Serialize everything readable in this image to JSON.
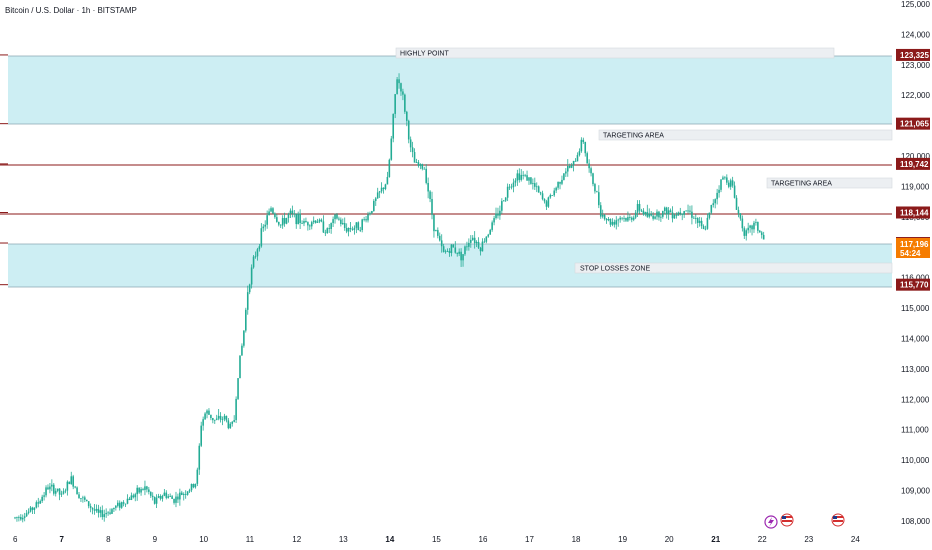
{
  "header": {
    "title": "Bitcoin / U.S. Dollar · 1h · BITSTAMP"
  },
  "colors": {
    "candle": "#22ab94",
    "zone_fill": "#cdeef3",
    "zone_line": "#8aa6b3",
    "level_line": "#8b1a1a",
    "level_tag": "#8b1a1a",
    "price_tag": "#f57c00",
    "label_box": "#eceff2",
    "grid_text": "#131722"
  },
  "chart_data": {
    "type": "candlestick",
    "symbol": "Bitcoin / U.S. Dollar",
    "interval": "1h",
    "exchange": "BITSTAMP",
    "ylim": [
      107900,
      125000
    ],
    "y_ticks": [
      "125,000",
      "124,000",
      "123,000",
      "122,000",
      "121,000",
      "120,000",
      "119,000",
      "118,000",
      "117,000",
      "116,000",
      "115,000",
      "114,000",
      "113,000",
      "112,000",
      "111,000",
      "110,000",
      "109,000",
      "108,000"
    ],
    "x_ticks": [
      "6",
      "7",
      "8",
      "9",
      "10",
      "11",
      "12",
      "13",
      "14",
      "15",
      "16",
      "17",
      "18",
      "19",
      "20",
      "21",
      "22",
      "23",
      "24"
    ],
    "bold_x_ticks": [
      "7",
      "14",
      "21"
    ],
    "price_path": [
      [
        6.0,
        108100
      ],
      [
        6.3,
        108300
      ],
      [
        6.5,
        108600
      ],
      [
        6.7,
        109100
      ],
      [
        6.9,
        109000
      ],
      [
        7.0,
        108800
      ],
      [
        7.2,
        109400
      ],
      [
        7.4,
        108800
      ],
      [
        7.6,
        108500
      ],
      [
        7.8,
        108200
      ],
      [
        8.0,
        108300
      ],
      [
        8.2,
        108500
      ],
      [
        8.4,
        108700
      ],
      [
        8.6,
        108900
      ],
      [
        8.8,
        109100
      ],
      [
        9.0,
        108600
      ],
      [
        9.2,
        108900
      ],
      [
        9.4,
        108700
      ],
      [
        9.6,
        108900
      ],
      [
        9.8,
        109100
      ],
      [
        9.9,
        109300
      ],
      [
        10.0,
        111200
      ],
      [
        10.1,
        111600
      ],
      [
        10.3,
        111300
      ],
      [
        10.5,
        111400
      ],
      [
        10.6,
        111100
      ],
      [
        10.7,
        111200
      ],
      [
        10.8,
        113000
      ],
      [
        10.9,
        114000
      ],
      [
        11.0,
        115600
      ],
      [
        11.1,
        116400
      ],
      [
        11.3,
        117500
      ],
      [
        11.5,
        118300
      ],
      [
        11.7,
        117700
      ],
      [
        11.9,
        118100
      ],
      [
        12.2,
        117800
      ],
      [
        12.5,
        117900
      ],
      [
        12.7,
        117500
      ],
      [
        12.9,
        118000
      ],
      [
        13.1,
        117600
      ],
      [
        13.4,
        117700
      ],
      [
        13.6,
        118100
      ],
      [
        13.8,
        118700
      ],
      [
        14.0,
        119200
      ],
      [
        14.1,
        120800
      ],
      [
        14.2,
        122600
      ],
      [
        14.3,
        122200
      ],
      [
        14.4,
        121300
      ],
      [
        14.5,
        120200
      ],
      [
        14.6,
        119700
      ],
      [
        14.8,
        119600
      ],
      [
        15.0,
        117700
      ],
      [
        15.2,
        116800
      ],
      [
        15.4,
        117000
      ],
      [
        15.6,
        116700
      ],
      [
        15.8,
        117400
      ],
      [
        16.0,
        117000
      ],
      [
        16.2,
        117600
      ],
      [
        16.4,
        118200
      ],
      [
        16.6,
        119000
      ],
      [
        16.8,
        119400
      ],
      [
        17.0,
        119300
      ],
      [
        17.2,
        118900
      ],
      [
        17.4,
        118400
      ],
      [
        17.6,
        118900
      ],
      [
        17.8,
        119500
      ],
      [
        18.0,
        119700
      ],
      [
        18.2,
        120600
      ],
      [
        18.3,
        119700
      ],
      [
        18.5,
        118700
      ],
      [
        18.6,
        118100
      ],
      [
        18.8,
        117800
      ],
      [
        19.0,
        118000
      ],
      [
        19.2,
        117900
      ],
      [
        19.4,
        118300
      ],
      [
        19.6,
        118000
      ],
      [
        19.8,
        118100
      ],
      [
        20.0,
        118200
      ],
      [
        20.2,
        118100
      ],
      [
        20.4,
        118300
      ],
      [
        20.6,
        118000
      ],
      [
        20.8,
        117500
      ],
      [
        21.0,
        118500
      ],
      [
        21.2,
        119300
      ],
      [
        21.4,
        119100
      ],
      [
        21.5,
        118300
      ],
      [
        21.7,
        117400
      ],
      [
        21.9,
        117800
      ],
      [
        22.1,
        117200
      ]
    ],
    "levels": [
      {
        "value": "123,325"
      },
      {
        "value": "121,065"
      },
      {
        "value": "119,742"
      },
      {
        "value": "118,144"
      },
      {
        "value": "117,140"
      },
      {
        "value": "115,770"
      }
    ],
    "current_price": {
      "value": "117,196",
      "countdown": "54:24"
    },
    "zones": [
      {
        "name": "upper",
        "from": 121065,
        "to": 123325
      },
      {
        "name": "lower",
        "from": 115770,
        "to": 117196
      }
    ],
    "annotations": [
      "HIGHLY POINT",
      "TARGETING AREA",
      "TARGETING AREA",
      "STOP LOSSES ZONE"
    ]
  }
}
